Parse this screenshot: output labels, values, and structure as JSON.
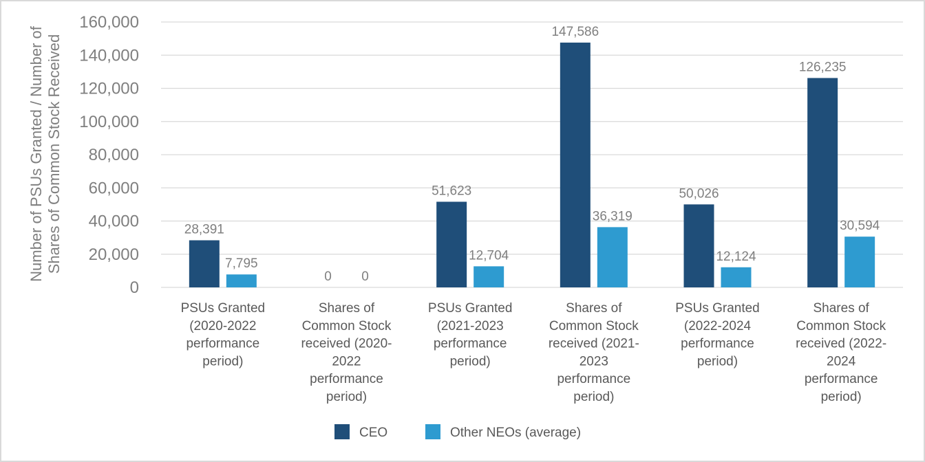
{
  "chart_data": {
    "type": "bar",
    "title": "",
    "ylabel": [
      "Number of PSUs Granted / Number of",
      "Shares of Common Stock Received"
    ],
    "ylim": [
      0,
      160000
    ],
    "yticks": [
      "0",
      "20,000",
      "40,000",
      "60,000",
      "80,000",
      "100,000",
      "120,000",
      "140,000",
      "160,000"
    ],
    "grid": true,
    "legend_position": "bottom",
    "categories": [
      [
        "PSUs Granted",
        "(2020-2022",
        "performance",
        "period)"
      ],
      [
        "Shares of",
        "Common Stock",
        "received (2020-",
        "2022",
        "performance",
        "period)"
      ],
      [
        "PSUs Granted",
        "(2021-2023",
        "performance",
        "period)"
      ],
      [
        "Shares of",
        "Common Stock",
        "received (2021-",
        "2023",
        "performance",
        "period)"
      ],
      [
        "PSUs Granted",
        "(2022-2024",
        "performance",
        "period)"
      ],
      [
        "Shares of",
        "Common Stock",
        "received (2022-",
        "2024",
        "performance",
        "period)"
      ]
    ],
    "series": [
      {
        "name": "CEO",
        "color": "#1f4e79",
        "values": [
          28391,
          0,
          51623,
          147586,
          50026,
          126235
        ],
        "labels": [
          "28,391",
          "0",
          "51,623",
          "147,586",
          "50,026",
          "126,235"
        ]
      },
      {
        "name": "Other NEOs (average)",
        "color": "#2e9bd0",
        "values": [
          7795,
          0,
          12704,
          36319,
          12124,
          30594
        ],
        "labels": [
          "7,795",
          "0",
          "12,704",
          "36,319",
          "12,124",
          "30,594"
        ]
      }
    ]
  }
}
